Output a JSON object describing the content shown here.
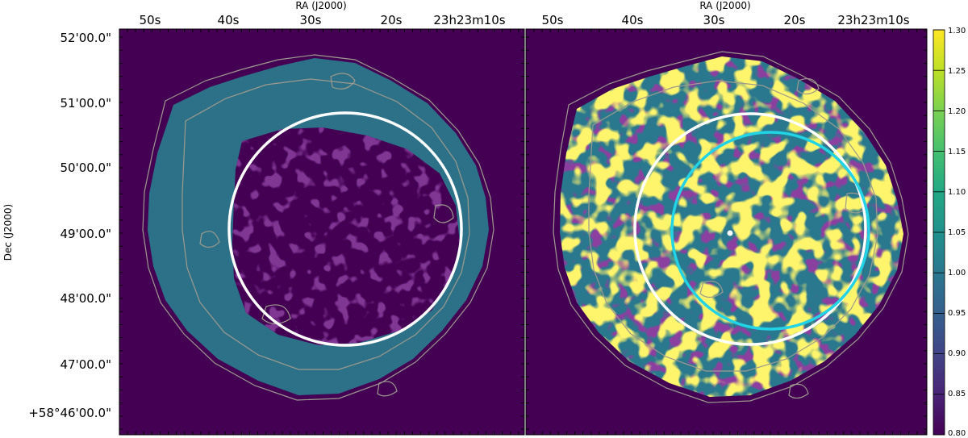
{
  "axes": {
    "ra_label": "RA (J2000)",
    "dec_label": "Dec (J2000)",
    "ra_ticks": [
      "50s",
      "40s",
      "30s",
      "20s",
      "23h23m10s"
    ],
    "dec_ticks": [
      "52'00.0\"",
      "51'00.0\"",
      "50'00.0\"",
      "49'00.0\"",
      "48'00.0\"",
      "47'00.0\"",
      "+58°46'00.0\""
    ]
  },
  "colorbar": {
    "colormap": "viridis",
    "range": [
      0.8,
      1.3
    ],
    "ticks": [
      "1.30",
      "1.25",
      "1.20",
      "1.15",
      "1.10",
      "1.05",
      "1.00",
      "0.95",
      "0.90",
      "0.85",
      "0.80"
    ]
  },
  "colors": {
    "background": "#440154",
    "left_fill": "#2c7187",
    "circle_white": "#ffffff",
    "circle_cyan": "#22d3e6",
    "contour": "#9e9a8e"
  }
}
